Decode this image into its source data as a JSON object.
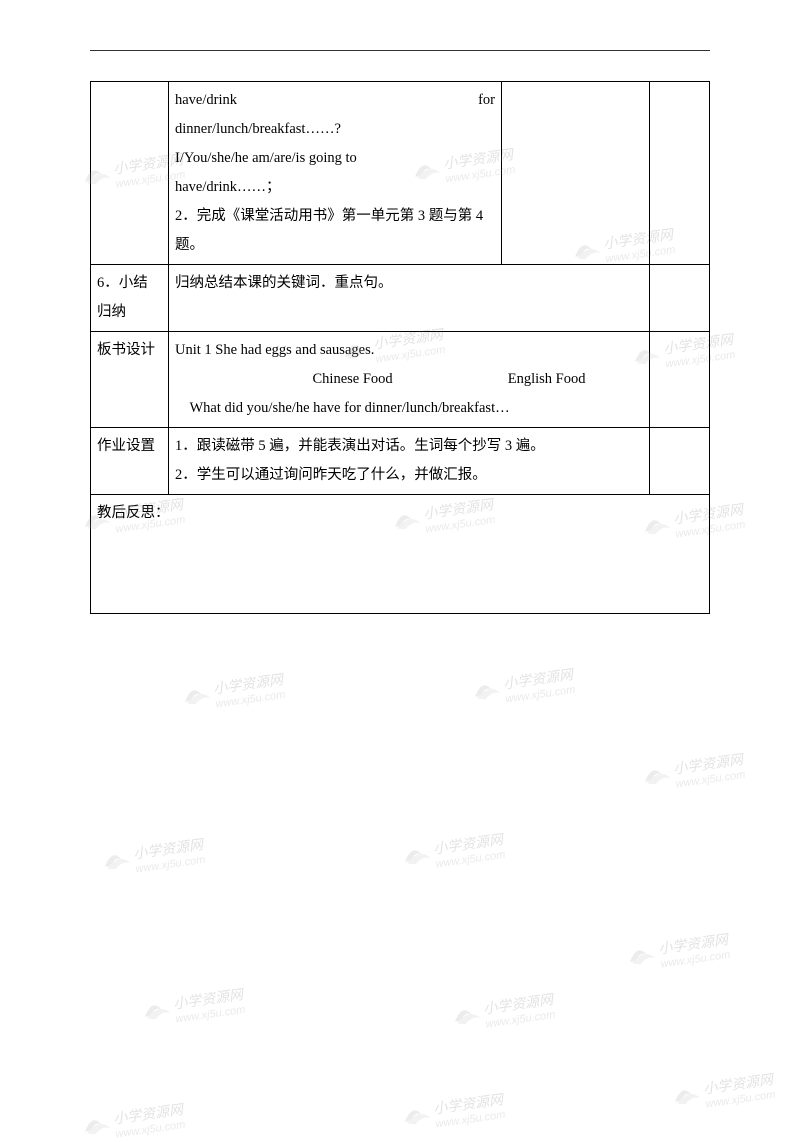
{
  "row1": {
    "col2": {
      "line1_left": "have/drink",
      "line1_right": "for",
      "line2": "dinner/lunch/breakfast……?",
      "line3": "I/You/she/he am/are/is going to",
      "line4": "have/drink……；",
      "line5": "2．完成《课堂活动用书》第一单元第 3 题与第 4 题。"
    }
  },
  "row2": {
    "label": "6．小结归纳",
    "content": "归纳总结本课的关键词．重点句。"
  },
  "row3": {
    "label": "板书设计",
    "line1": "Unit 1 She had eggs and sausages.",
    "line2_left": "Chinese Food",
    "line2_right": "English Food",
    "line3": "What did you/she/he have for dinner/lunch/breakfast…"
  },
  "row4": {
    "label": "作业设置",
    "line1": "1．跟读磁带 5 遍，并能表演出对话。生词每个抄写 3 遍。",
    "line2": "2．学生可以通过询问昨天吃了什么，并做汇报。"
  },
  "row5": {
    "label": "教后反思："
  },
  "watermark": {
    "text": "小学资源网",
    "url": "www.xj5u.com"
  }
}
